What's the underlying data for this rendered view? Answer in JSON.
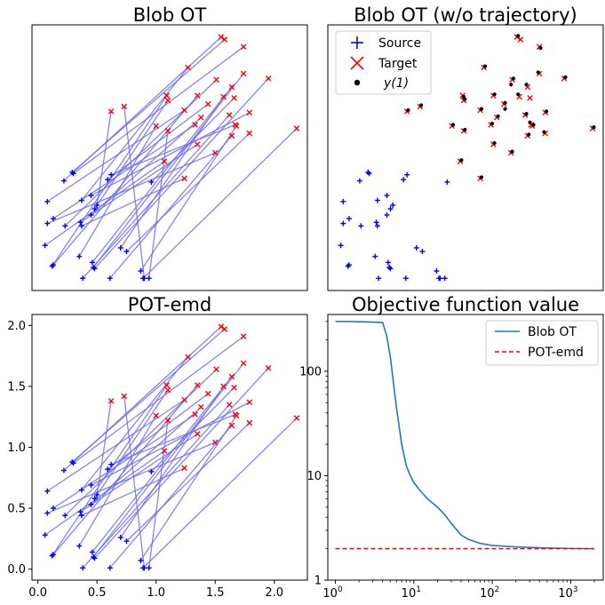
{
  "chart_data": [
    {
      "type": "scatter",
      "title": "Blob OT",
      "xlim": [
        -0.05,
        2.28
      ],
      "ylim": [
        -0.09,
        2.09
      ],
      "show_ticks": false,
      "show_trajectories": true,
      "show_y1": false
    },
    {
      "type": "scatter",
      "title": "Blob OT (w/o trajectory)",
      "xlim": [
        -0.05,
        2.28
      ],
      "ylim": [
        -0.09,
        2.09
      ],
      "show_ticks": false,
      "show_trajectories": false,
      "show_y1": true,
      "legend": {
        "position": "upper left",
        "entries": [
          {
            "label": "Source",
            "marker": "plus",
            "color": "#0000ff"
          },
          {
            "label": "Target",
            "marker": "x",
            "color": "#ff0000"
          },
          {
            "label": "y(1)",
            "marker": "dot",
            "color": "#000000"
          }
        ]
      }
    },
    {
      "type": "scatter",
      "title": "POT-emd",
      "xlim": [
        -0.05,
        2.28
      ],
      "ylim": [
        -0.09,
        2.09
      ],
      "show_ticks": true,
      "xticks": [
        "0.0",
        "0.5",
        "1.0",
        "1.5",
        "2.0"
      ],
      "yticks": [
        "0.0",
        "0.5",
        "1.0",
        "1.5",
        "2.0"
      ],
      "show_trajectories": true,
      "show_y1": false
    },
    {
      "type": "line",
      "title": "Objective function value",
      "xscale": "log",
      "yscale": "log",
      "xlim": [
        0.8,
        2600
      ],
      "ylim": [
        1,
        350
      ],
      "xticks": [
        "10^0",
        "10^1",
        "10^2",
        "10^3"
      ],
      "yticks": [
        "1",
        "10",
        "100"
      ],
      "legend": {
        "position": "upper right"
      },
      "series": [
        {
          "name": "Blob OT",
          "color": "#1f77b4",
          "style": "solid",
          "x": [
            1,
            1.5,
            2,
            3,
            4,
            4.5,
            5,
            6,
            7,
            8,
            9,
            10,
            12,
            15,
            20,
            25,
            30,
            40,
            50,
            70,
            100,
            200,
            500,
            1000,
            2000
          ],
          "y": [
            300,
            300,
            298,
            296,
            293,
            220,
            140,
            45,
            20,
            12.5,
            10,
            8.6,
            7.2,
            6,
            5,
            4.2,
            3.5,
            2.7,
            2.45,
            2.25,
            2.15,
            2.08,
            2.03,
            2.01,
            2.0
          ]
        },
        {
          "name": "POT-emd",
          "color": "#ff0000",
          "style": "dashed",
          "x": [
            1,
            2000
          ],
          "y": [
            2.0,
            2.0
          ]
        }
      ]
    }
  ],
  "points": {
    "source": [
      [
        0.06,
        0.28
      ],
      [
        0.08,
        0.46
      ],
      [
        0.08,
        0.64
      ],
      [
        0.12,
        0.11
      ],
      [
        0.13,
        0.12
      ],
      [
        0.13,
        0.5
      ],
      [
        0.22,
        0.81
      ],
      [
        0.23,
        0.44
      ],
      [
        0.29,
        0.88
      ],
      [
        0.3,
        0.87
      ],
      [
        0.35,
        0.19
      ],
      [
        0.36,
        0.47
      ],
      [
        0.37,
        0.65
      ],
      [
        0.37,
        0.44
      ],
      [
        0.38,
        0.01
      ],
      [
        0.45,
        0.53
      ],
      [
        0.45,
        0.69
      ],
      [
        0.46,
        0.14
      ],
      [
        0.47,
        0.1
      ],
      [
        0.48,
        0.09
      ],
      [
        0.48,
        0.58
      ],
      [
        0.5,
        0.61
      ],
      [
        0.59,
        0.82
      ],
      [
        0.61,
        0.01
      ],
      [
        0.62,
        0.86
      ],
      [
        0.7,
        0.26
      ],
      [
        0.75,
        0.23
      ],
      [
        0.87,
        0.07
      ],
      [
        0.89,
        0.01
      ],
      [
        0.9,
        0.01
      ],
      [
        0.94,
        0.01
      ],
      [
        0.96,
        0.8
      ]
    ],
    "target": [
      [
        0.62,
        1.38
      ],
      [
        0.73,
        1.42
      ],
      [
        1.1,
        1.47
      ],
      [
        1.09,
        1.51
      ],
      [
        1.1,
        1.22
      ],
      [
        1.0,
        1.26
      ],
      [
        1.07,
        0.97
      ],
      [
        1.24,
        1.39
      ],
      [
        1.24,
        0.83
      ],
      [
        1.27,
        1.74
      ],
      [
        1.33,
        1.27
      ],
      [
        1.35,
        1.51
      ],
      [
        1.35,
        1.11
      ],
      [
        1.38,
        1.33
      ],
      [
        1.44,
        1.44
      ],
      [
        1.5,
        1.04
      ],
      [
        1.51,
        1.64
      ],
      [
        1.55,
        1.99
      ],
      [
        1.57,
        1.5
      ],
      [
        1.62,
        1.35
      ],
      [
        1.64,
        1.58
      ],
      [
        1.64,
        1.18
      ],
      [
        1.67,
        1.27
      ],
      [
        1.68,
        1.26
      ],
      [
        1.74,
        1.91
      ],
      [
        1.74,
        1.69
      ],
      [
        1.79,
        1.37
      ],
      [
        1.79,
        1.2
      ],
      [
        1.95,
        1.65
      ],
      [
        2.19,
        1.24
      ],
      [
        1.58,
        1.97
      ],
      [
        1.66,
        1.49
      ]
    ],
    "y1": [
      [
        0.63,
        1.39
      ],
      [
        0.74,
        1.43
      ],
      [
        1.11,
        1.48
      ],
      [
        1.1,
        1.5
      ],
      [
        1.11,
        1.23
      ],
      [
        1.01,
        1.27
      ],
      [
        1.08,
        0.98
      ],
      [
        1.25,
        1.4
      ],
      [
        1.25,
        0.84
      ],
      [
        1.28,
        1.75
      ],
      [
        1.34,
        1.28
      ],
      [
        1.36,
        1.52
      ],
      [
        1.36,
        1.12
      ],
      [
        1.39,
        1.34
      ],
      [
        1.45,
        1.45
      ],
      [
        1.51,
        1.05
      ],
      [
        1.52,
        1.65
      ],
      [
        1.56,
        2.0
      ],
      [
        1.56,
        1.52
      ],
      [
        1.63,
        1.36
      ],
      [
        1.63,
        1.6
      ],
      [
        1.65,
        1.19
      ],
      [
        1.66,
        1.29
      ],
      [
        1.69,
        1.27
      ],
      [
        1.75,
        1.9
      ],
      [
        1.73,
        1.7
      ],
      [
        1.8,
        1.38
      ],
      [
        1.78,
        1.21
      ],
      [
        1.96,
        1.66
      ],
      [
        2.2,
        1.25
      ],
      [
        1.5,
        1.6
      ],
      [
        1.45,
        1.4
      ]
    ]
  },
  "trajectory_pairs": [
    [
      0,
      6
    ],
    [
      1,
      15
    ],
    [
      2,
      7
    ],
    [
      3,
      3
    ],
    [
      4,
      11
    ],
    [
      5,
      10
    ],
    [
      6,
      17
    ],
    [
      7,
      16
    ],
    [
      8,
      30
    ],
    [
      9,
      24
    ],
    [
      10,
      5
    ],
    [
      11,
      12
    ],
    [
      12,
      9
    ],
    [
      13,
      8
    ],
    [
      14,
      19
    ],
    [
      15,
      13
    ],
    [
      16,
      26
    ],
    [
      17,
      20
    ],
    [
      18,
      25
    ],
    [
      19,
      28
    ],
    [
      20,
      2
    ],
    [
      21,
      0
    ],
    [
      22,
      14
    ],
    [
      23,
      21
    ],
    [
      24,
      22
    ],
    [
      25,
      18
    ],
    [
      26,
      27
    ],
    [
      27,
      23
    ],
    [
      28,
      29
    ],
    [
      29,
      1
    ],
    [
      30,
      4
    ],
    [
      31,
      31
    ]
  ]
}
